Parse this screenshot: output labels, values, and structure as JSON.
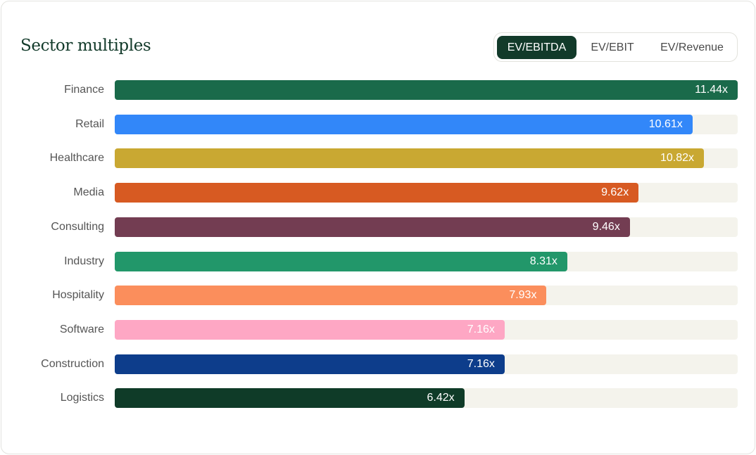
{
  "title": "Sector multiples",
  "tabs": [
    {
      "label": "EV/EBITDA",
      "active": true
    },
    {
      "label": "EV/EBIT",
      "active": false
    },
    {
      "label": "EV/Revenue",
      "active": false
    }
  ],
  "chart_data": {
    "type": "bar",
    "orientation": "horizontal",
    "title": "Sector multiples",
    "metric": "EV/EBITDA",
    "xlim": [
      0,
      11.44
    ],
    "categories": [
      "Finance",
      "Retail",
      "Healthcare",
      "Media",
      "Consulting",
      "Industry",
      "Hospitality",
      "Software",
      "Construction",
      "Logistics"
    ],
    "values": [
      11.44,
      10.61,
      10.82,
      9.62,
      9.46,
      8.31,
      7.93,
      7.16,
      7.16,
      6.42
    ],
    "labels": [
      "11.44x",
      "10.61x",
      "10.82x",
      "9.62x",
      "9.46x",
      "8.31x",
      "7.93x",
      "7.16x",
      "7.16x",
      "6.42x"
    ],
    "colors": [
      "#1a6a4a",
      "#3287f9",
      "#c9a832",
      "#d75a22",
      "#733d52",
      "#22976a",
      "#fb8e5c",
      "#fea7c4",
      "#0d3d8b",
      "#0f3b28"
    ]
  }
}
